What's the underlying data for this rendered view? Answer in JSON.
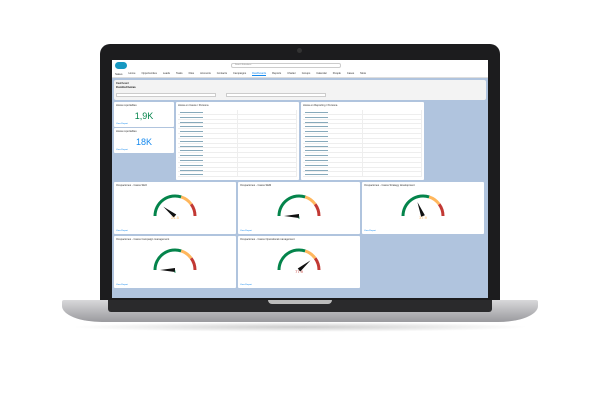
{
  "app": {
    "name": "Sales",
    "search_placeholder": "Search Salesforce"
  },
  "nav": [
    "Home",
    "Opportunities",
    "Leads",
    "Tasks",
    "Files",
    "Accounts",
    "Contacts",
    "Campaigns",
    "Dashboards",
    "Reports",
    "Chatter",
    "Groups",
    "Calendar",
    "People",
    "Cases",
    "More"
  ],
  "active_nav": "Dashboards",
  "dashboard": {
    "label": "Dashboard",
    "title": "Control horas"
  },
  "metrics": [
    {
      "title": "Horas reportables",
      "value": "1,9K",
      "color": "#04844b"
    },
    {
      "title": "Horas reportables",
      "value": "18K",
      "color": "#1589ee"
    }
  ],
  "tables": [
    {
      "title": "Horas en Casos / Persona"
    },
    {
      "title": "Horas en Reporting / Persona"
    }
  ],
  "gauges": [
    {
      "title": "Ocupaciones - Casos SEO",
      "value": "21.5",
      "pct": 0.215,
      "color": "#ffb75d"
    },
    {
      "title": "Ocupaciones - Casos SEM",
      "value": "0",
      "pct": 0,
      "color": "#04844b"
    },
    {
      "title": "Ocupaciones - Casos Strategy development",
      "value": "37.9",
      "pct": 0.379,
      "color": "#ffb75d"
    },
    {
      "title": "Ocupaciones - Casos Campaign management",
      "value": "0",
      "pct": 0,
      "color": "#04844b"
    },
    {
      "title": "Ocupaciones - Casos Operational management",
      "value": "77.9",
      "pct": 0.779,
      "color": "#c23934"
    }
  ],
  "view_report": "View Report",
  "colors": {
    "green": "#04844b",
    "orange": "#ffb75d",
    "red": "#c23934",
    "bg": "#b0c4de"
  }
}
